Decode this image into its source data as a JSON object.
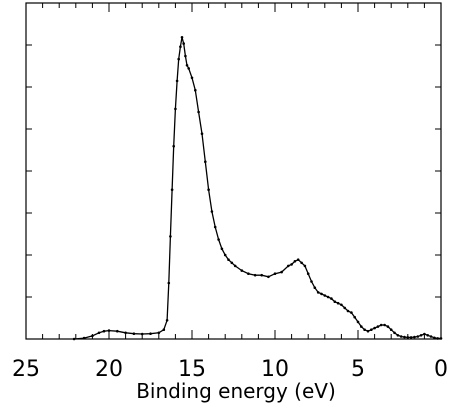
{
  "chart_data": {
    "type": "line",
    "title": "",
    "xlabel": "Binding energy (eV)",
    "ylabel": "",
    "x_reversed": true,
    "xlim": [
      25,
      0
    ],
    "ylim": [
      0,
      1
    ],
    "x_ticks": [
      25,
      20,
      15,
      10,
      5,
      0
    ],
    "x_tick_labels": [
      "25",
      "20",
      "15",
      "10",
      "5",
      "0"
    ],
    "x_minor_step": 1,
    "y_tick_labels_shown": false,
    "grid": false,
    "legend": "none",
    "series": [
      {
        "color": "#000000",
        "marker": "small-dot",
        "x": [
          22.1,
          21.5,
          21.0,
          20.6,
          20.3,
          20.0,
          19.5,
          19.0,
          18.5,
          18.0,
          17.5,
          17.0,
          16.7,
          16.5,
          16.4,
          16.3,
          16.2,
          16.1,
          16.0,
          15.9,
          15.8,
          15.7,
          15.6,
          15.5,
          15.4,
          15.3,
          15.2,
          15.0,
          14.8,
          14.6,
          14.4,
          14.2,
          14.0,
          13.8,
          13.6,
          13.4,
          13.2,
          13.0,
          12.8,
          12.6,
          12.4,
          12.0,
          11.6,
          11.2,
          10.8,
          10.4,
          10.0,
          9.6,
          9.2,
          9.0,
          8.8,
          8.6,
          8.4,
          8.2,
          8.0,
          7.8,
          7.6,
          7.4,
          7.2,
          7.0,
          6.8,
          6.6,
          6.4,
          6.2,
          6.0,
          5.8,
          5.6,
          5.4,
          5.2,
          5.0,
          4.8,
          4.6,
          4.4,
          4.2,
          4.0,
          3.8,
          3.6,
          3.4,
          3.2,
          3.0,
          2.8,
          2.6,
          2.4,
          2.2,
          2.0,
          1.8,
          1.6,
          1.4,
          1.2,
          1.0,
          0.8,
          0.6,
          0.4,
          0.2,
          0.0
        ],
        "y": [
          0.0,
          0.003,
          0.01,
          0.02,
          0.025,
          0.027,
          0.025,
          0.02,
          0.017,
          0.016,
          0.017,
          0.02,
          0.03,
          0.06,
          0.18,
          0.33,
          0.48,
          0.62,
          0.74,
          0.83,
          0.9,
          0.94,
          0.97,
          0.95,
          0.91,
          0.88,
          0.87,
          0.84,
          0.8,
          0.73,
          0.66,
          0.57,
          0.48,
          0.41,
          0.36,
          0.32,
          0.29,
          0.27,
          0.255,
          0.245,
          0.235,
          0.22,
          0.21,
          0.205,
          0.205,
          0.2,
          0.21,
          0.215,
          0.235,
          0.24,
          0.25,
          0.255,
          0.245,
          0.235,
          0.21,
          0.185,
          0.165,
          0.15,
          0.145,
          0.14,
          0.135,
          0.13,
          0.12,
          0.115,
          0.11,
          0.1,
          0.09,
          0.085,
          0.07,
          0.055,
          0.04,
          0.03,
          0.025,
          0.03,
          0.035,
          0.04,
          0.045,
          0.045,
          0.04,
          0.03,
          0.02,
          0.012,
          0.008,
          0.006,
          0.005,
          0.005,
          0.006,
          0.008,
          0.012,
          0.016,
          0.012,
          0.008,
          0.004,
          0.002,
          0.002
        ]
      }
    ]
  }
}
